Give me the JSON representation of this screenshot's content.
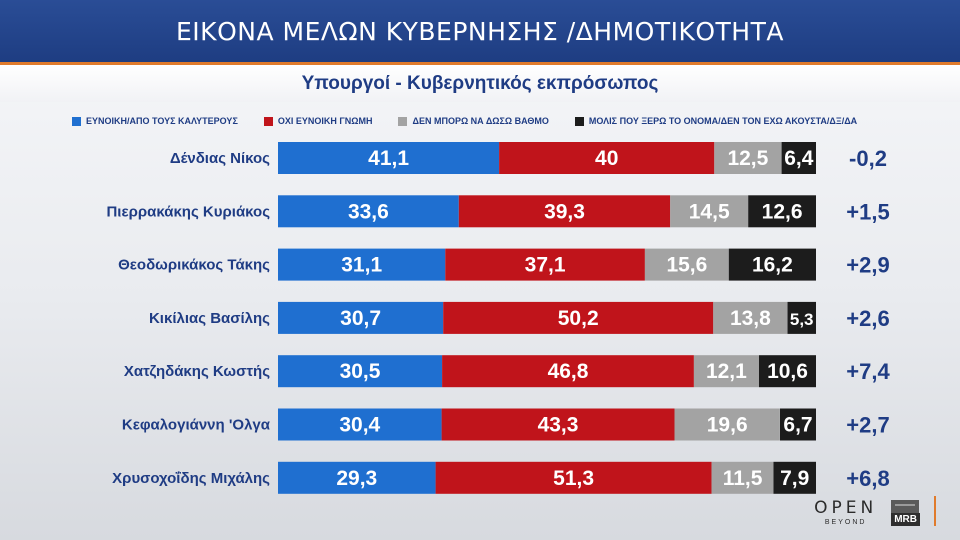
{
  "header": {
    "title": "ΕΙΚΟΝΑ ΜΕΛΩΝ ΚΥΒΕΡΝΗΣΗΣ /ΔΗΜΟΤΙΚΟΤΗΤΑ"
  },
  "subheader": {
    "title": "Υπουργοί - Κυβερνητικός εκπρόσωπος"
  },
  "legend": [
    {
      "label": "ΕΥΝΟΙΚΗ/ΑΠΟ ΤΟΥΣ ΚΑΛΥΤΕΡΟΥΣ",
      "color": "#1f6fd0"
    },
    {
      "label": "ΟΧΙ ΕΥΝΟΙΚΗ ΓΝΩΜΗ",
      "color": "#c0141b"
    },
    {
      "label": "ΔΕΝ ΜΠΟΡΩ ΝΑ ΔΩΣΩ ΒΑΘΜΟ",
      "color": "#a3a3a3"
    },
    {
      "label": "ΜΟΛΙΣ ΠΟΥ ΞΕΡΩ ΤΟ ΟΝΟΜΑ/ΔΕΝ ΤΟΝ ΕΧΩ ΑΚΟΥΣΤΑ/ΔΞ/ΔΑ",
      "color": "#1c1c1c"
    }
  ],
  "chart_data": {
    "type": "bar",
    "orientation": "horizontal-stacked-100",
    "categories": [
      "Δένδιας Νίκος",
      "Πιερρακάκης Κυριάκος",
      "Θεοδωρικάκος Τάκης",
      "Κικίλιας Βασίλης",
      "Χατζηδάκης Κωστής",
      "Κεφαλογιάννη 'Ολγα",
      "Χρυσοχοΐδης Μιχάλης"
    ],
    "series": [
      {
        "name": "ΕΥΝΟΙΚΗ/ΑΠΟ ΤΟΥΣ ΚΑΛΥΤΕΡΟΥΣ",
        "values": [
          41.1,
          33.6,
          31.1,
          30.7,
          30.5,
          30.4,
          29.3
        ],
        "labels": [
          "41,1",
          "33,6",
          "31,1",
          "30,7",
          "30,5",
          "30,4",
          "29,3"
        ]
      },
      {
        "name": "ΟΧΙ ΕΥΝΟΙΚΗ ΓΝΩΜΗ",
        "values": [
          40,
          39.3,
          37.1,
          50.2,
          46.8,
          43.3,
          51.3
        ],
        "labels": [
          "40",
          "39,3",
          "37,1",
          "50,2",
          "46,8",
          "43,3",
          "51,3"
        ]
      },
      {
        "name": "ΔΕΝ ΜΠΟΡΩ ΝΑ ΔΩΣΩ ΒΑΘΜΟ",
        "values": [
          12.5,
          14.5,
          15.6,
          13.8,
          12.1,
          19.6,
          11.5
        ],
        "labels": [
          "12,5",
          "14,5",
          "15,6",
          "13,8",
          "12,1",
          "19,6",
          "11,5"
        ]
      },
      {
        "name": "ΜΟΛΙΣ ΠΟΥ ΞΕΡΩ ΤΟ ΟΝΟΜΑ/ΔΕΝ ΤΟΝ ΕΧΩ ΑΚΟΥΣΤΑ/ΔΞ/ΔΑ",
        "values": [
          6.4,
          12.6,
          16.2,
          5.3,
          10.6,
          6.7,
          7.9
        ],
        "labels": [
          "6,4",
          "12,6",
          "16,2",
          "5,3",
          "10,6",
          "6,7",
          "7,9"
        ]
      }
    ],
    "differences": [
      "-0,2",
      "+1,5",
      "+2,9",
      "+2,6",
      "+7,4",
      "+2,7",
      "+6,8"
    ],
    "colors": [
      "#1f6fd0",
      "#c0141b",
      "#a3a3a3",
      "#1c1c1c"
    ],
    "legend_position": "top",
    "grid": false
  },
  "logos": {
    "open": "OPEN",
    "beyond": "BEYOND",
    "mrb": "MRB"
  }
}
